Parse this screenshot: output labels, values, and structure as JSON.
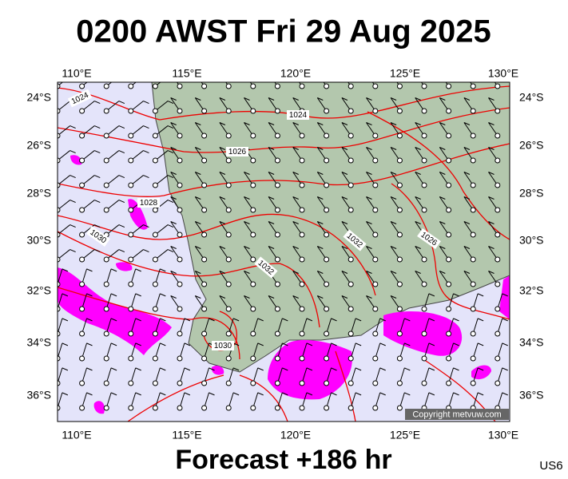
{
  "title": "0200 AWST Fri 29 Aug 2025",
  "footer": "Forecast +186 hr",
  "code": "US6",
  "copyright": "Copyright metvuw.com",
  "longitude_labels": [
    "110°E",
    "115°E",
    "120°E",
    "125°E",
    "130°E"
  ],
  "latitude_labels": [
    "24°S",
    "26°S",
    "28°S",
    "30°S",
    "32°S",
    "34°S",
    "36°S"
  ],
  "isobar_labels": [
    "1024",
    "1024",
    "1026",
    "1028",
    "1030",
    "1032",
    "1026",
    "1032",
    "1030"
  ]
}
